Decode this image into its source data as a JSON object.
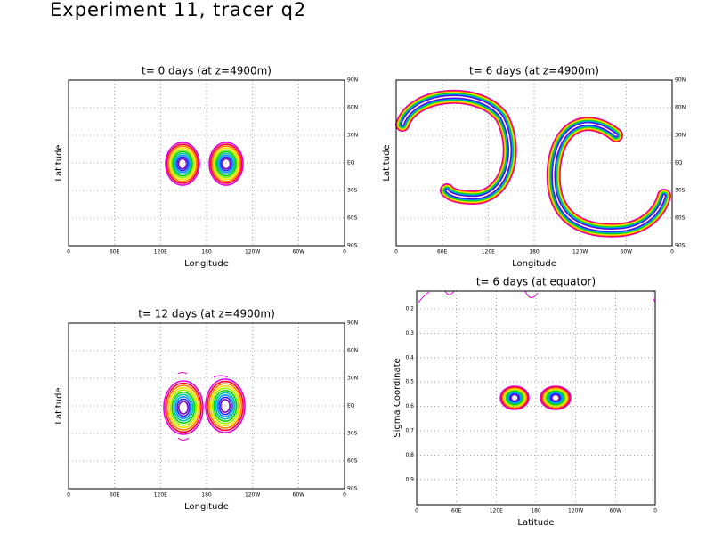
{
  "title": "Experiment 11, tracer q2",
  "panels": [
    {
      "title": "t= 0 days (at z=4900m)",
      "xlabel": "Longitude",
      "ylabel": "Latitude",
      "xticks": [
        "0",
        "60E",
        "120E",
        "180",
        "120W",
        "60W",
        "0"
      ],
      "yticks": [
        "90N",
        "60N",
        "30N",
        "EQ",
        "30S",
        "60S",
        "90S"
      ]
    },
    {
      "title": "t= 6 days (at z=4900m)",
      "xlabel": "Longitude",
      "ylabel": "Latitude",
      "xticks": [
        "0",
        "60E",
        "120E",
        "180",
        "120W",
        "60W",
        "0"
      ],
      "yticks": [
        "90N",
        "60N",
        "30N",
        "EQ",
        "30S",
        "60S",
        "90S"
      ]
    },
    {
      "title": "t= 12 days (at z=4900m)",
      "xlabel": "Longitude",
      "ylabel": "Latitude",
      "xticks": [
        "0",
        "60E",
        "120E",
        "180",
        "120W",
        "60W",
        "0"
      ],
      "yticks": [
        "90N",
        "60N",
        "30N",
        "EQ",
        "30S",
        "60S",
        "90S"
      ]
    },
    {
      "title": "t= 6 days (at equator)",
      "xlabel": "Latitude",
      "ylabel": "Sigma Coordinate",
      "xticks": [
        "0",
        "60E",
        "120E",
        "180",
        "120W",
        "60W",
        "0"
      ],
      "yticks": [
        "0.2",
        "0.3",
        "0.4",
        "0.5",
        "0.6",
        "0.7",
        "0.8",
        "0.9"
      ]
    }
  ]
}
